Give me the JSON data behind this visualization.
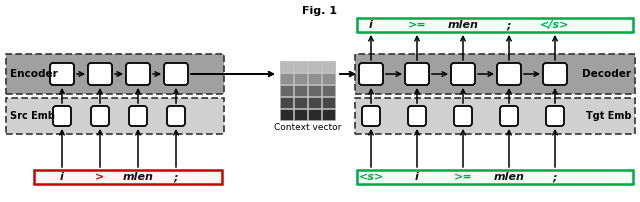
{
  "title": "Fig. 1",
  "bg_color": "#ffffff",
  "encoder_bg": "#a0a0a0",
  "decoder_bg": "#a0a0a0",
  "emb_bg": "#d0d0d0",
  "red_box_color": "#cc0000",
  "green_box_color": "#00aa44",
  "encoder_label": "Encoder",
  "decoder_label": "Decoder",
  "src_emb_label": "Src Emb",
  "tgt_emb_label": "Tgt Emb",
  "context_label": "Context vector",
  "src_tokens": [
    "i",
    ">",
    "mlen",
    ";"
  ],
  "tgt_input_tokens": [
    "<s>",
    "i",
    ">=",
    "mlen",
    ";"
  ],
  "tgt_output_tokens": [
    "i",
    ">=",
    "mlen",
    ";",
    "</s>"
  ],
  "green_text_color": "#00aa44",
  "red_text_color": "#cc0000",
  "enc_n": 4,
  "dec_n": 5,
  "grays": [
    "#2a2a2a",
    "#484848",
    "#686868",
    "#909090",
    "#bababa"
  ]
}
